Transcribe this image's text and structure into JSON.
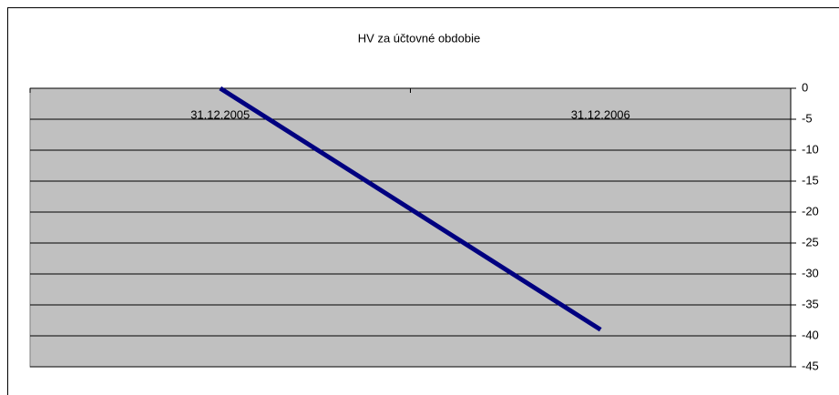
{
  "chart_data": {
    "type": "line",
    "title": "HV za účtovné obdobie",
    "categories": [
      "31.12.2005",
      "31.12.2006"
    ],
    "series": [
      {
        "name": "HV",
        "color": "#000080",
        "values": [
          0,
          -39
        ]
      }
    ],
    "ylim": [
      -45,
      0
    ],
    "yticks": [
      0,
      -5,
      -10,
      -15,
      -20,
      -25,
      -30,
      -35,
      -40,
      -45
    ],
    "grid": true,
    "y_axis_side": "right",
    "plot_color": "#c0c0c0"
  }
}
